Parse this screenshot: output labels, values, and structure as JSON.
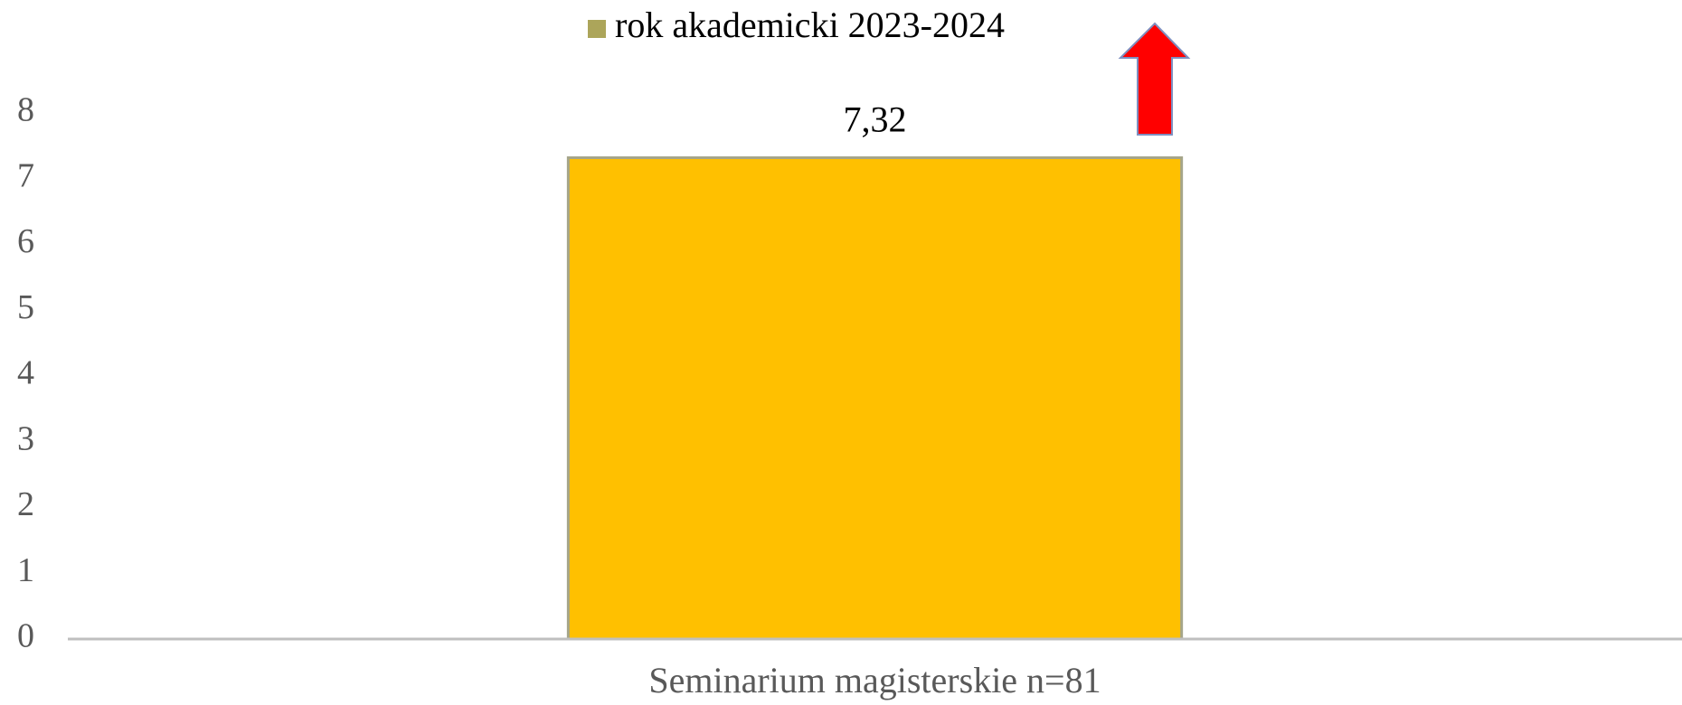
{
  "chart_data": {
    "type": "bar",
    "categories": [
      "Seminarium magisterskie n=81"
    ],
    "series": [
      {
        "name": "rok akademicki 2023-2024",
        "color": "#ffc000",
        "legend_color": "#aca55a",
        "values": [
          7.32
        ],
        "value_labels": [
          "7,32"
        ]
      }
    ],
    "ylim": [
      0,
      8
    ],
    "yticks": [
      0,
      1,
      2,
      3,
      4,
      5,
      6,
      7,
      8
    ],
    "grid": false,
    "legend": "top"
  }
}
